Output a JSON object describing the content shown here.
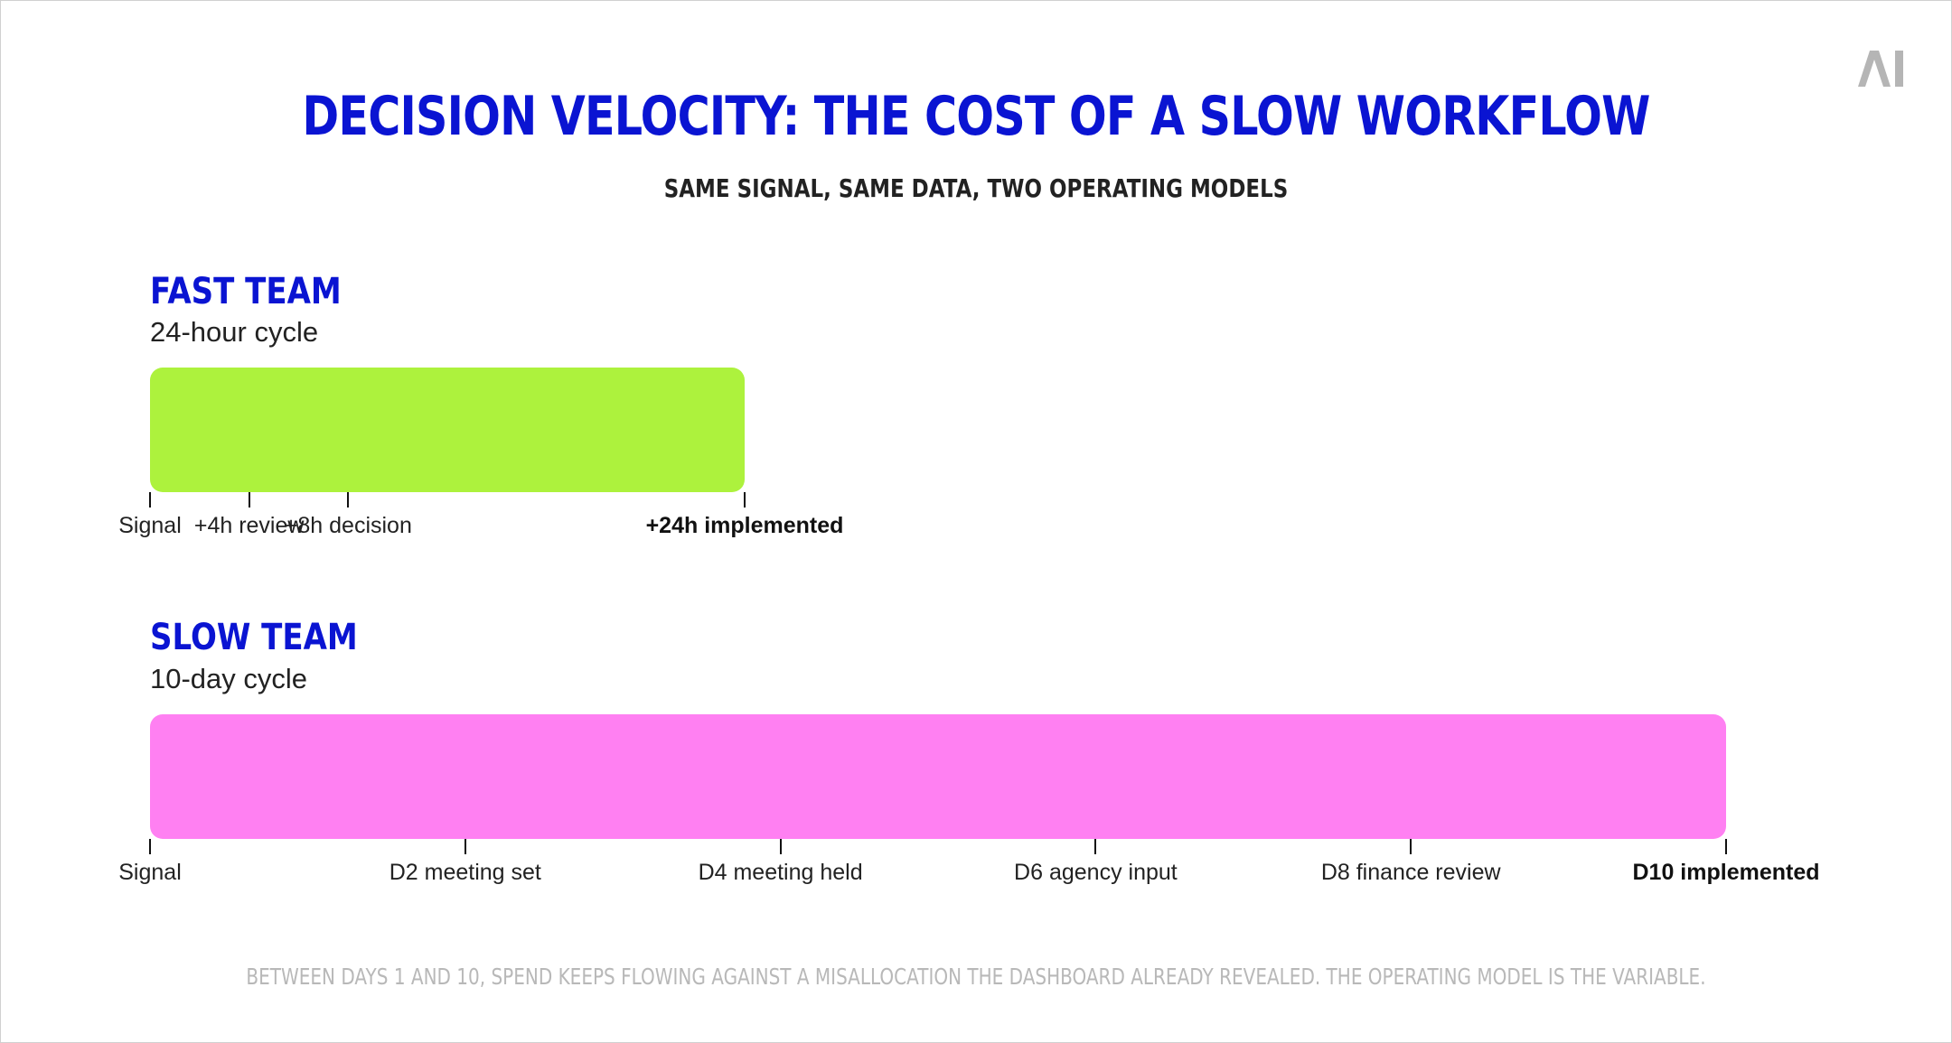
{
  "title": "DECISION VELOCITY: THE COST OF A SLOW WORKFLOW",
  "subtitle": "SAME SIGNAL, SAME DATA, TWO OPERATING MODELS",
  "logo_text": "AI",
  "colors": {
    "accent": "#0a14d2",
    "fast_bar": "#adf23d",
    "slow_bar": "#ff80f2",
    "footer": "#b8b8b8"
  },
  "teams": [
    {
      "label": "FAST TEAM",
      "cycle": "24-hour cycle",
      "scale_max": 24,
      "duration": 24,
      "unit": "hours",
      "milestones": [
        {
          "label": "Signal",
          "at": 0,
          "bold": false
        },
        {
          "label": "+4h review",
          "at": 4,
          "bold": false
        },
        {
          "label": "+8h decision",
          "at": 8,
          "bold": false
        },
        {
          "label": "+24h implemented",
          "at": 24,
          "bold": true
        }
      ]
    },
    {
      "label": "SLOW TEAM",
      "cycle": "10-day cycle",
      "scale_max": 10,
      "duration": 10,
      "unit": "days",
      "milestones": [
        {
          "label": "Signal",
          "at": 0,
          "bold": false
        },
        {
          "label": "D2 meeting set",
          "at": 2,
          "bold": false
        },
        {
          "label": "D4 meeting held",
          "at": 4,
          "bold": false
        },
        {
          "label": "D6 agency input",
          "at": 6,
          "bold": false
        },
        {
          "label": "D8 finance review",
          "at": 8,
          "bold": false
        },
        {
          "label": "D10 implemented",
          "at": 10,
          "bold": true
        }
      ]
    }
  ],
  "footer": "BETWEEN DAYS 1 AND 10, SPEND KEEPS FLOWING AGAINST A MISALLOCATION THE DASHBOARD ALREADY REVEALED. THE OPERATING MODEL IS THE VARIABLE."
}
